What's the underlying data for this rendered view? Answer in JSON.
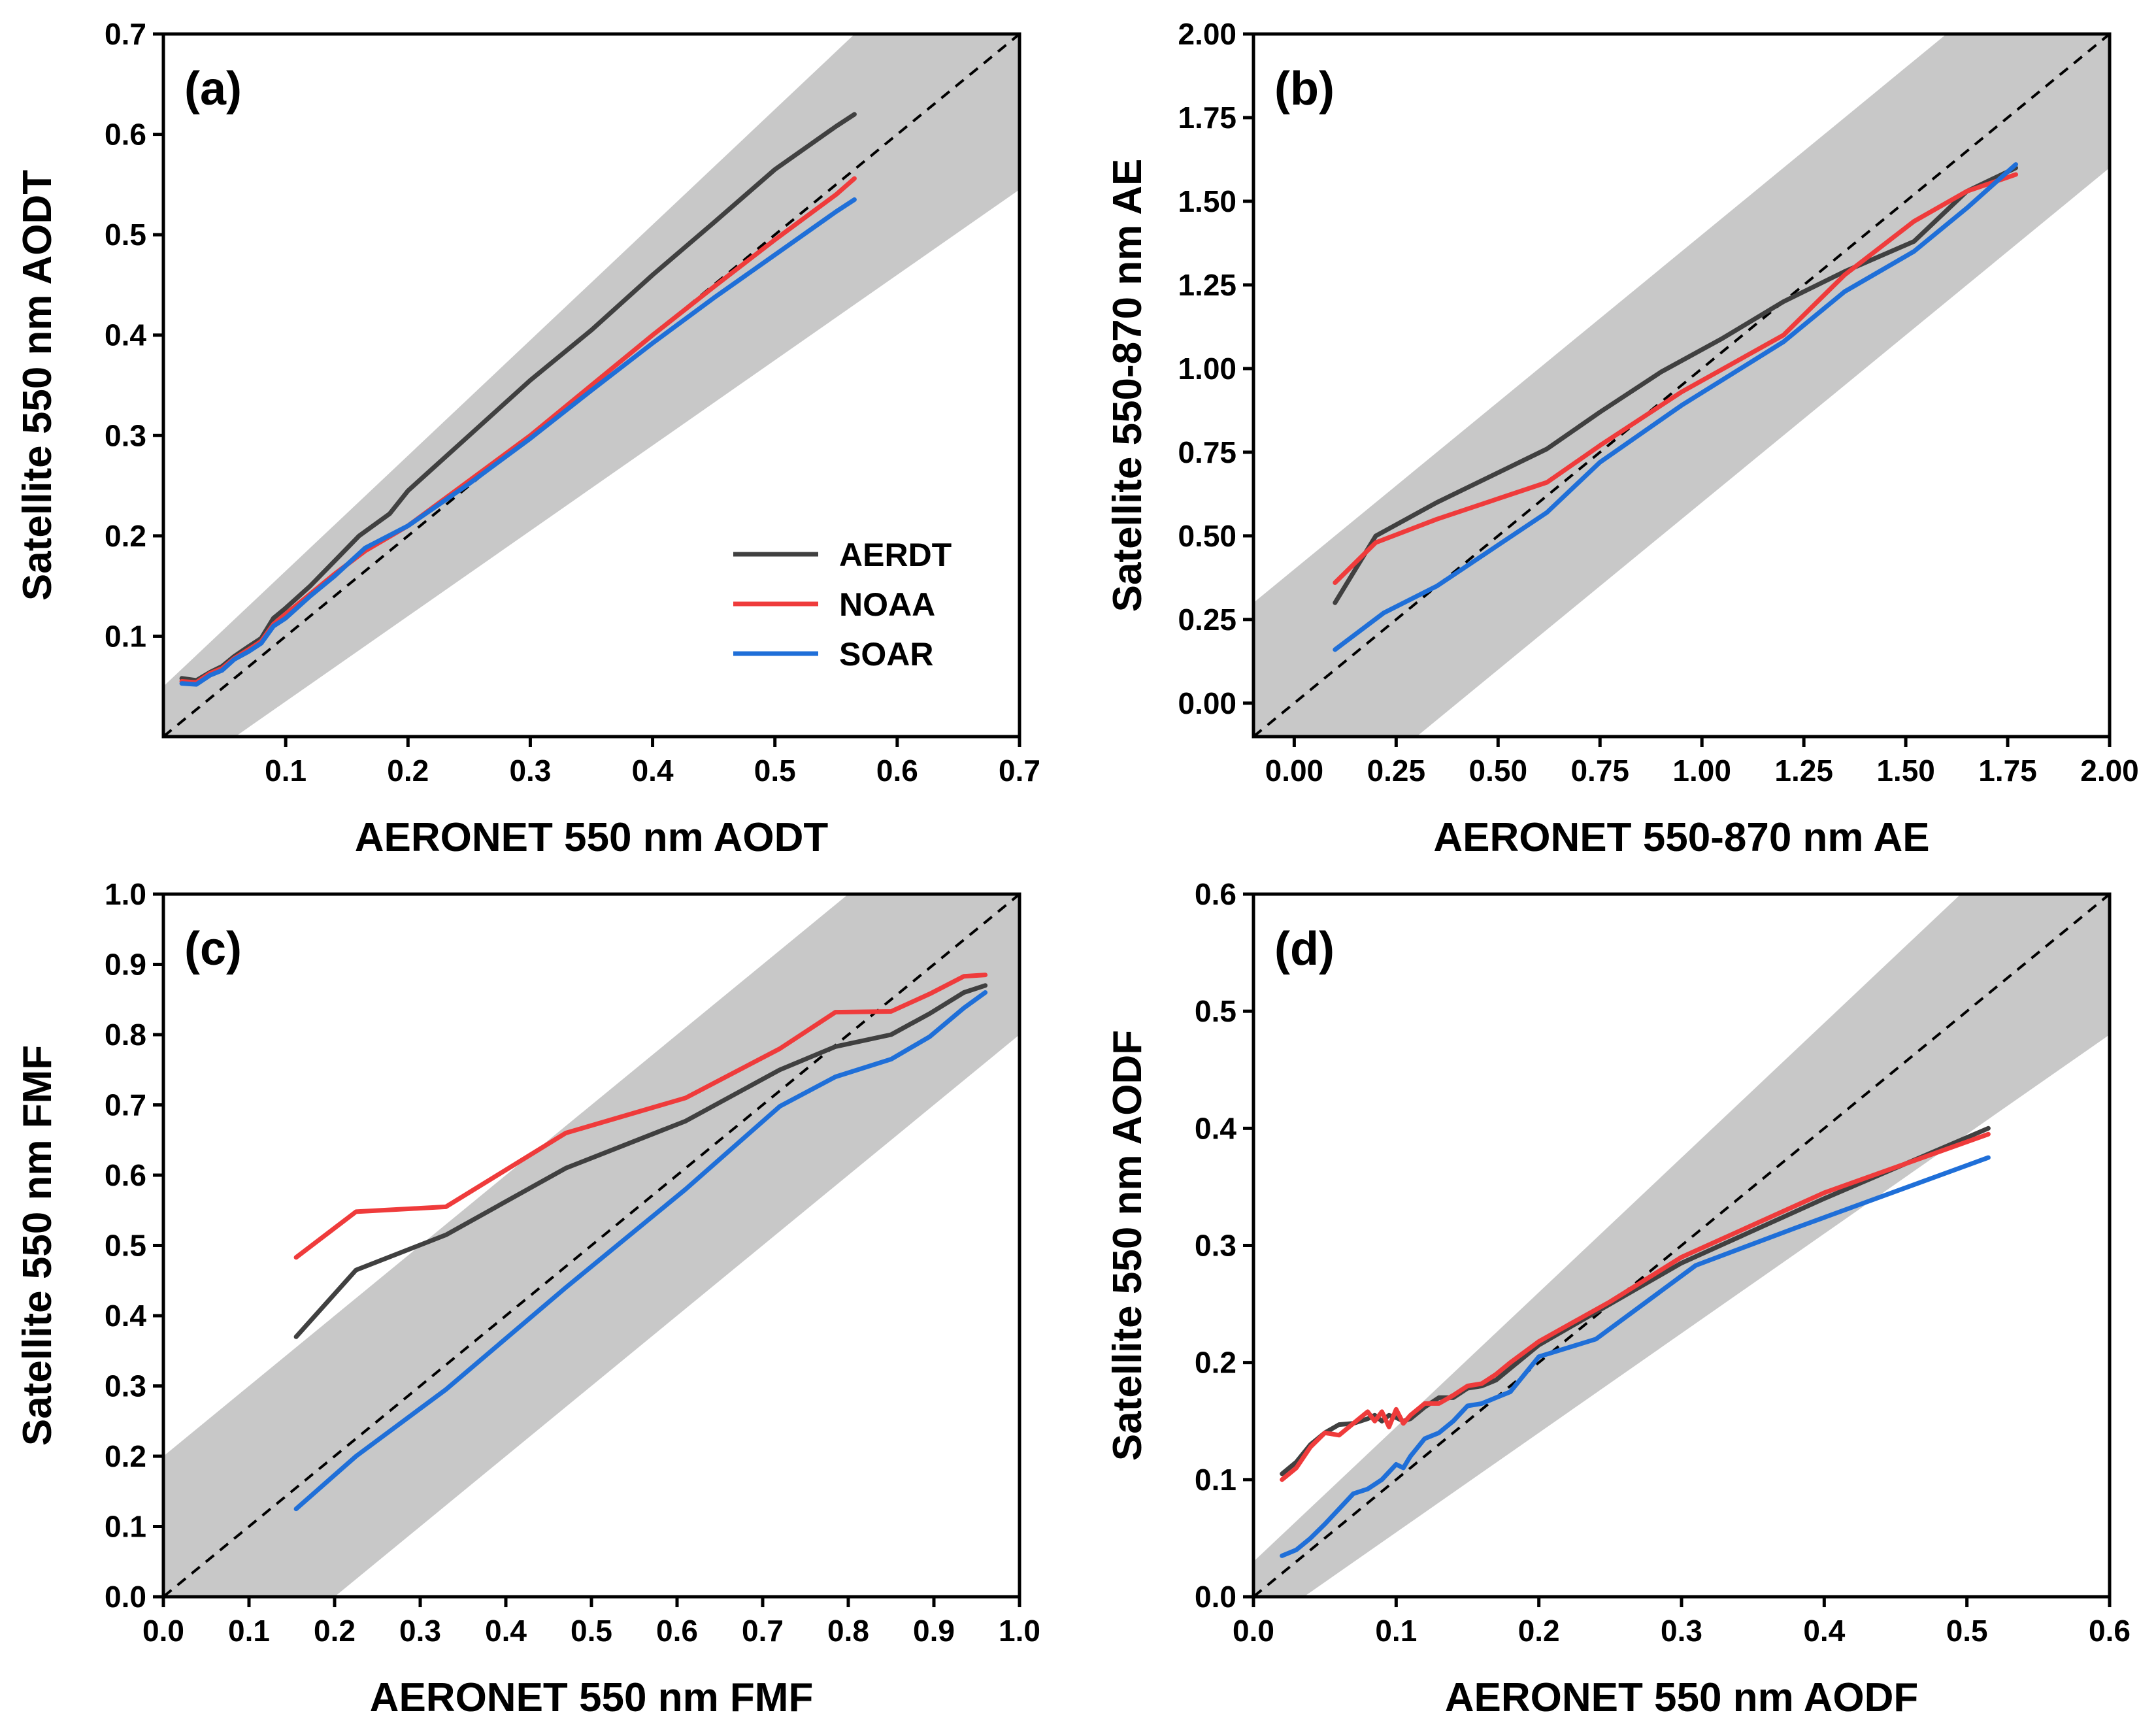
{
  "colors": {
    "AERDT": "#404040",
    "NOAA": "#ef3b3b",
    "SOAR": "#1f6fd8",
    "band": "#c8c8c8",
    "one_to_one": "#000000",
    "frame": "#000000"
  },
  "legend": [
    {
      "name": "AERDT",
      "color": "#404040"
    },
    {
      "name": "NOAA",
      "color": "#ef3b3b"
    },
    {
      "name": "SOAR",
      "color": "#1f6fd8"
    }
  ],
  "chart_data": [
    {
      "id": "a",
      "type": "line",
      "panel_label": "(a)",
      "xlabel": "AERONET 550 nm AODT",
      "ylabel": "Satellite 550 nm AODT",
      "xlim": [
        0.0,
        0.7
      ],
      "ylim": [
        0.0,
        0.7
      ],
      "xticks": [
        0.1,
        0.2,
        0.3,
        0.4,
        0.5,
        0.6,
        0.7
      ],
      "xtick_labels": [
        "0.1",
        "0.2",
        "0.3",
        "0.4",
        "0.5",
        "0.6",
        "0.7"
      ],
      "yticks": [
        0.1,
        0.2,
        0.3,
        0.4,
        0.5,
        0.6,
        0.7
      ],
      "ytick_labels": [
        "0.1",
        "0.2",
        "0.3",
        "0.4",
        "0.5",
        "0.6",
        "0.7"
      ],
      "envelope": {
        "type": "linear",
        "a": 0.05,
        "b": 0.15
      },
      "legend_visible": true,
      "series": [
        {
          "name": "AERDT",
          "x": [
            0.015,
            0.027,
            0.038,
            0.048,
            0.058,
            0.07,
            0.08,
            0.09,
            0.1,
            0.12,
            0.14,
            0.16,
            0.185,
            0.2,
            0.25,
            0.3,
            0.35,
            0.4,
            0.45,
            0.5,
            0.55,
            0.565
          ],
          "y": [
            0.058,
            0.056,
            0.064,
            0.07,
            0.08,
            0.09,
            0.098,
            0.118,
            0.128,
            0.15,
            0.175,
            0.2,
            0.222,
            0.245,
            0.3,
            0.355,
            0.405,
            0.46,
            0.512,
            0.565,
            0.608,
            0.62
          ]
        },
        {
          "name": "NOAA",
          "x": [
            0.015,
            0.027,
            0.038,
            0.048,
            0.058,
            0.07,
            0.08,
            0.09,
            0.1,
            0.12,
            0.14,
            0.165,
            0.2,
            0.25,
            0.3,
            0.35,
            0.4,
            0.45,
            0.5,
            0.55,
            0.565
          ],
          "y": [
            0.055,
            0.054,
            0.063,
            0.068,
            0.078,
            0.087,
            0.095,
            0.112,
            0.122,
            0.142,
            0.162,
            0.185,
            0.21,
            0.255,
            0.3,
            0.35,
            0.4,
            0.448,
            0.495,
            0.54,
            0.556
          ]
        },
        {
          "name": "SOAR",
          "x": [
            0.015,
            0.027,
            0.038,
            0.048,
            0.058,
            0.07,
            0.08,
            0.09,
            0.1,
            0.12,
            0.14,
            0.165,
            0.2,
            0.25,
            0.3,
            0.35,
            0.4,
            0.45,
            0.5,
            0.55,
            0.565
          ],
          "y": [
            0.053,
            0.052,
            0.061,
            0.066,
            0.077,
            0.085,
            0.093,
            0.11,
            0.118,
            0.14,
            0.16,
            0.188,
            0.21,
            0.252,
            0.297,
            0.345,
            0.392,
            0.437,
            0.48,
            0.523,
            0.535
          ]
        }
      ]
    },
    {
      "id": "b",
      "type": "line",
      "panel_label": "(b)",
      "xlabel": "AERONET 550-870 nm AE",
      "ylabel": "Satellite 550-870 nm AE",
      "xlim": [
        -0.1,
        2.0
      ],
      "ylim": [
        -0.1,
        2.0
      ],
      "xticks": [
        0.0,
        0.25,
        0.5,
        0.75,
        1.0,
        1.25,
        1.5,
        1.75,
        2.0
      ],
      "xtick_labels": [
        "0.00",
        "0.25",
        "0.50",
        "0.75",
        "1.00",
        "1.25",
        "1.50",
        "1.75",
        "2.00"
      ],
      "yticks": [
        0.0,
        0.25,
        0.5,
        0.75,
        1.0,
        1.25,
        1.5,
        1.75,
        2.0
      ],
      "ytick_labels": [
        "0.00",
        "0.25",
        "0.50",
        "0.75",
        "1.00",
        "1.25",
        "1.50",
        "1.75",
        "2.00"
      ],
      "envelope": {
        "type": "constant",
        "a": 0.4,
        "b": 0.0
      },
      "legend_visible": false,
      "series": [
        {
          "name": "AERDT",
          "x": [
            0.1,
            0.2,
            0.35,
            0.62,
            0.75,
            0.9,
            1.05,
            1.2,
            1.35,
            1.52,
            1.65,
            1.77
          ],
          "y": [
            0.3,
            0.5,
            0.6,
            0.76,
            0.87,
            0.99,
            1.09,
            1.2,
            1.29,
            1.38,
            1.53,
            1.6
          ]
        },
        {
          "name": "NOAA",
          "x": [
            0.1,
            0.2,
            0.35,
            0.62,
            0.75,
            0.95,
            1.2,
            1.35,
            1.52,
            1.65,
            1.77
          ],
          "y": [
            0.36,
            0.48,
            0.55,
            0.66,
            0.77,
            0.93,
            1.1,
            1.28,
            1.44,
            1.53,
            1.58
          ]
        },
        {
          "name": "SOAR",
          "x": [
            0.1,
            0.22,
            0.35,
            0.62,
            0.75,
            0.95,
            1.2,
            1.35,
            1.52,
            1.65,
            1.77
          ],
          "y": [
            0.16,
            0.27,
            0.35,
            0.57,
            0.72,
            0.89,
            1.08,
            1.23,
            1.35,
            1.48,
            1.61
          ]
        }
      ]
    },
    {
      "id": "c",
      "type": "line",
      "panel_label": "(c)",
      "xlabel": "AERONET 550 nm FMF",
      "ylabel": "Satellite 550 nm FMF",
      "xlim": [
        0.0,
        1.0
      ],
      "ylim": [
        0.0,
        1.0
      ],
      "xticks": [
        0.0,
        0.1,
        0.2,
        0.3,
        0.4,
        0.5,
        0.6,
        0.7,
        0.8,
        0.9,
        1.0
      ],
      "xtick_labels": [
        "0.0",
        "0.1",
        "0.2",
        "0.3",
        "0.4",
        "0.5",
        "0.6",
        "0.7",
        "0.8",
        "0.9",
        "1.0"
      ],
      "yticks": [
        0.0,
        0.1,
        0.2,
        0.3,
        0.4,
        0.5,
        0.6,
        0.7,
        0.8,
        0.9,
        1.0
      ],
      "ytick_labels": [
        "0.0",
        "0.1",
        "0.2",
        "0.3",
        "0.4",
        "0.5",
        "0.6",
        "0.7",
        "0.8",
        "0.9",
        "1.0"
      ],
      "envelope": {
        "type": "constant",
        "a": 0.2,
        "b": 0.0
      },
      "legend_visible": false,
      "series": [
        {
          "name": "AERDT",
          "x": [
            0.155,
            0.225,
            0.33,
            0.47,
            0.61,
            0.72,
            0.785,
            0.85,
            0.895,
            0.935,
            0.96
          ],
          "y": [
            0.37,
            0.465,
            0.515,
            0.61,
            0.677,
            0.75,
            0.783,
            0.8,
            0.83,
            0.86,
            0.87
          ]
        },
        {
          "name": "NOAA",
          "x": [
            0.155,
            0.225,
            0.33,
            0.47,
            0.61,
            0.72,
            0.785,
            0.85,
            0.895,
            0.935,
            0.96
          ],
          "y": [
            0.483,
            0.548,
            0.555,
            0.66,
            0.71,
            0.78,
            0.832,
            0.833,
            0.858,
            0.883,
            0.885
          ]
        },
        {
          "name": "SOAR",
          "x": [
            0.155,
            0.225,
            0.33,
            0.47,
            0.61,
            0.72,
            0.785,
            0.85,
            0.895,
            0.935,
            0.96
          ],
          "y": [
            0.125,
            0.2,
            0.295,
            0.44,
            0.58,
            0.698,
            0.74,
            0.765,
            0.797,
            0.838,
            0.86
          ]
        }
      ]
    },
    {
      "id": "d",
      "type": "line",
      "panel_label": "(d)",
      "xlabel": "AERONET 550 nm AODF",
      "ylabel": "Satellite 550 nm AODF",
      "xlim": [
        0.0,
        0.6
      ],
      "ylim": [
        0.0,
        0.6
      ],
      "xticks": [
        0.0,
        0.1,
        0.2,
        0.3,
        0.4,
        0.5,
        0.6
      ],
      "xtick_labels": [
        "0.0",
        "0.1",
        "0.2",
        "0.3",
        "0.4",
        "0.5",
        "0.6"
      ],
      "yticks": [
        0.0,
        0.1,
        0.2,
        0.3,
        0.4,
        0.5,
        0.6
      ],
      "ytick_labels": [
        "0.0",
        "0.1",
        "0.2",
        "0.3",
        "0.4",
        "0.5",
        "0.6"
      ],
      "envelope": {
        "type": "linear",
        "a": 0.03,
        "b": 0.15
      },
      "legend_visible": false,
      "series": [
        {
          "name": "AERDT",
          "x": [
            0.02,
            0.03,
            0.04,
            0.05,
            0.06,
            0.07,
            0.08,
            0.085,
            0.09,
            0.095,
            0.1,
            0.105,
            0.11,
            0.12,
            0.13,
            0.14,
            0.15,
            0.16,
            0.17,
            0.18,
            0.2,
            0.25,
            0.3,
            0.4,
            0.515
          ],
          "y": [
            0.105,
            0.115,
            0.13,
            0.14,
            0.147,
            0.148,
            0.152,
            0.155,
            0.15,
            0.155,
            0.153,
            0.15,
            0.152,
            0.162,
            0.17,
            0.17,
            0.178,
            0.18,
            0.185,
            0.195,
            0.215,
            0.25,
            0.285,
            0.34,
            0.4
          ]
        },
        {
          "name": "NOAA",
          "x": [
            0.02,
            0.03,
            0.04,
            0.05,
            0.06,
            0.07,
            0.08,
            0.085,
            0.09,
            0.095,
            0.1,
            0.105,
            0.11,
            0.12,
            0.13,
            0.14,
            0.15,
            0.16,
            0.17,
            0.18,
            0.2,
            0.25,
            0.3,
            0.4,
            0.515
          ],
          "y": [
            0.1,
            0.11,
            0.128,
            0.14,
            0.138,
            0.148,
            0.158,
            0.15,
            0.158,
            0.145,
            0.16,
            0.148,
            0.155,
            0.165,
            0.165,
            0.172,
            0.18,
            0.182,
            0.19,
            0.2,
            0.218,
            0.252,
            0.29,
            0.345,
            0.395
          ]
        },
        {
          "name": "SOAR",
          "x": [
            0.02,
            0.03,
            0.04,
            0.05,
            0.06,
            0.07,
            0.08,
            0.09,
            0.1,
            0.105,
            0.11,
            0.12,
            0.13,
            0.14,
            0.15,
            0.16,
            0.17,
            0.18,
            0.2,
            0.24,
            0.31,
            0.38,
            0.515
          ],
          "y": [
            0.035,
            0.04,
            0.05,
            0.062,
            0.075,
            0.088,
            0.092,
            0.1,
            0.113,
            0.11,
            0.12,
            0.135,
            0.14,
            0.15,
            0.163,
            0.165,
            0.17,
            0.175,
            0.205,
            0.22,
            0.283,
            0.315,
            0.375
          ]
        }
      ]
    }
  ]
}
